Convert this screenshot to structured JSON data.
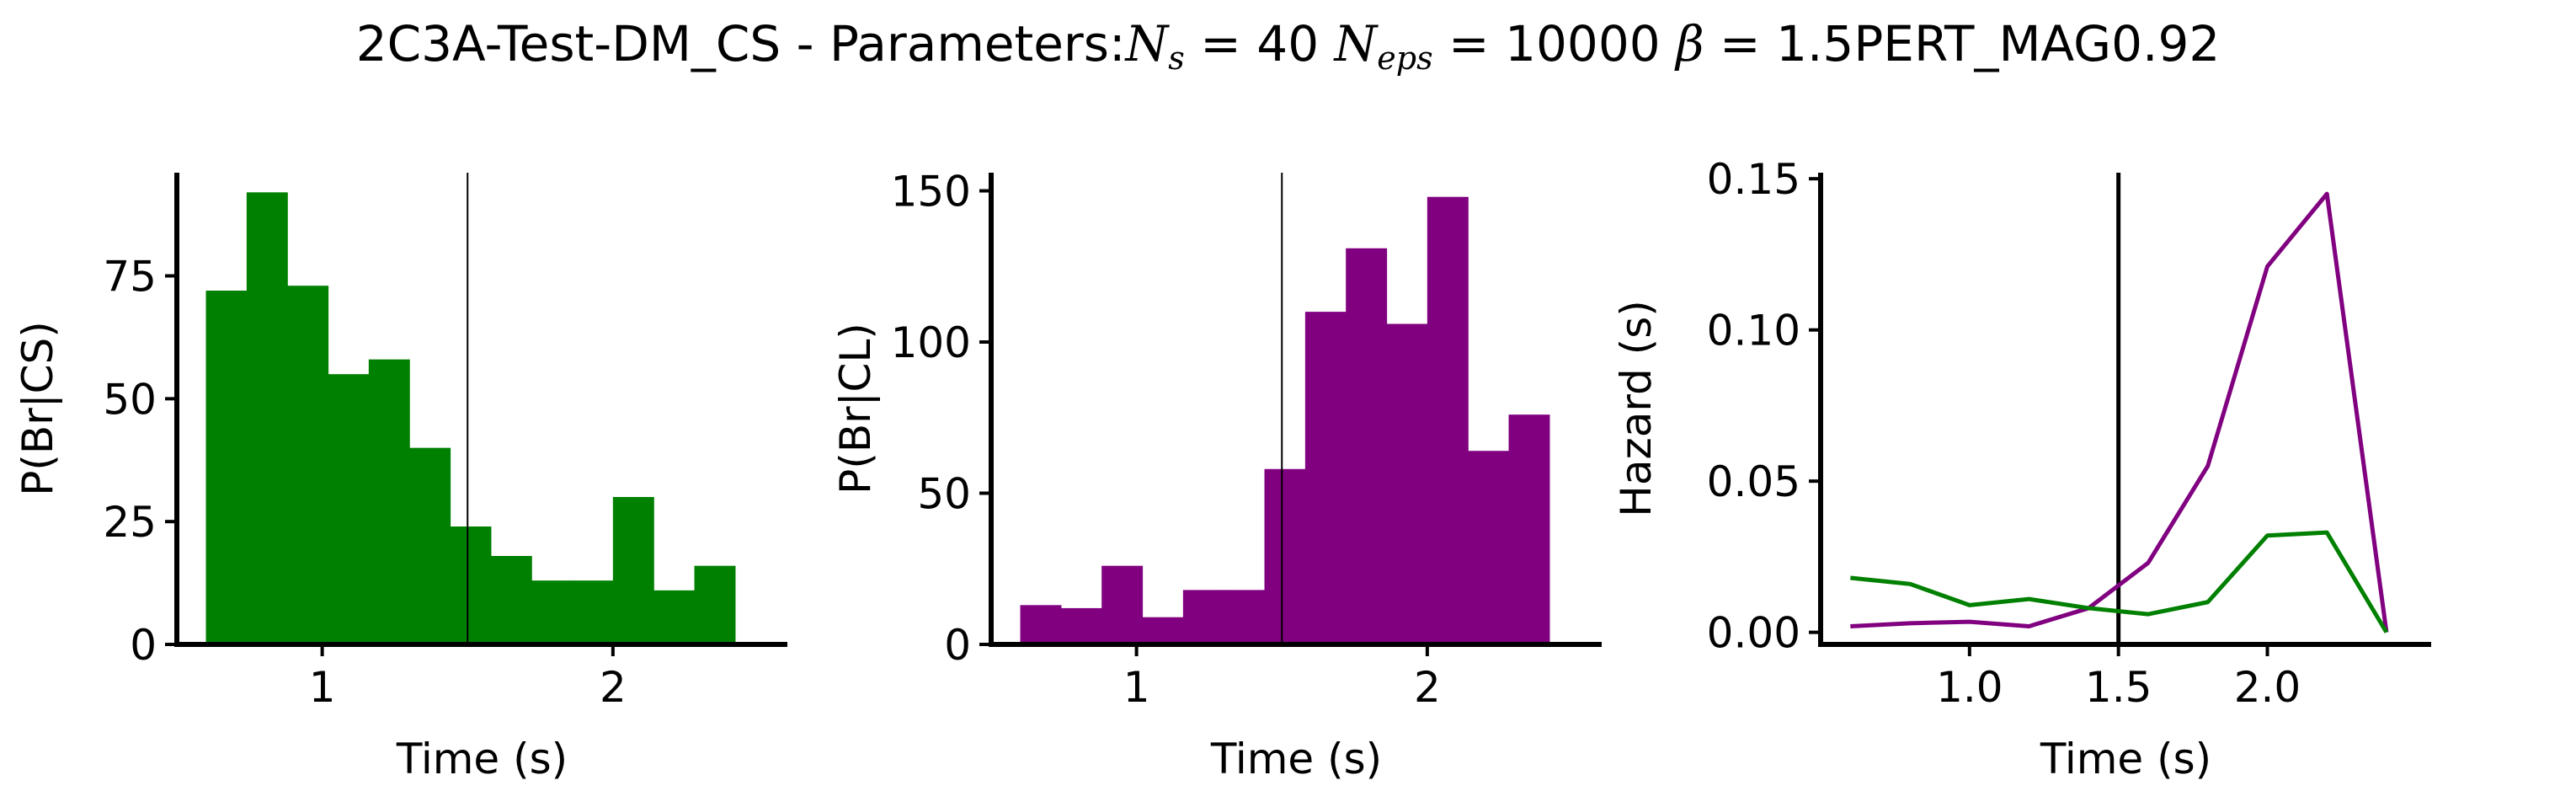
{
  "figure": {
    "title_prefix": "2C3A-Test-DM_CS - Parameters:",
    "params": [
      {
        "sym": "N",
        "sub": "s",
        "value": "40"
      },
      {
        "sym": "N",
        "sub": "eps",
        "value": "10000"
      },
      {
        "sym": "β",
        "sub": "",
        "value": "1.5"
      }
    ],
    "title_suffix": "PERT_MAG0.92"
  },
  "chart_data": [
    {
      "type": "bar",
      "ylabel": "P(Br|CS)",
      "xlabel": "Time (s)",
      "color": "#008000",
      "xlim": [
        0.5,
        2.6
      ],
      "ylim": [
        0,
        96
      ],
      "xticks": [
        1,
        2
      ],
      "xtick_labels": [
        "1",
        "2"
      ],
      "yticks": [
        0,
        25,
        50,
        75
      ],
      "ytick_labels": [
        "0",
        "25",
        "50",
        "75"
      ],
      "bin_edges": [
        0.6,
        0.74,
        0.88,
        1.02,
        1.16,
        1.3,
        1.44,
        1.58,
        1.72,
        1.86,
        2.0,
        2.14,
        2.28,
        2.42
      ],
      "values": [
        72,
        92,
        73,
        55,
        58,
        40,
        24,
        18,
        13,
        13,
        30,
        11,
        16
      ],
      "vline": 1.5
    },
    {
      "type": "bar",
      "ylabel": "P(Br|CL)",
      "xlabel": "Time (s)",
      "color": "#800080",
      "xlim": [
        0.5,
        2.6
      ],
      "ylim": [
        0,
        156
      ],
      "xticks": [
        1,
        2
      ],
      "xtick_labels": [
        "1",
        "2"
      ],
      "yticks": [
        0,
        50,
        100,
        150
      ],
      "ytick_labels": [
        "0",
        "50",
        "100",
        "150"
      ],
      "bin_edges": [
        0.6,
        0.74,
        0.88,
        1.02,
        1.16,
        1.3,
        1.44,
        1.58,
        1.72,
        1.86,
        2.0,
        2.14,
        2.28,
        2.42
      ],
      "values": [
        13,
        12,
        26,
        9,
        18,
        18,
        58,
        110,
        131,
        106,
        148,
        64,
        76
      ],
      "vline": 1.5
    },
    {
      "type": "line",
      "ylabel": "Hazard (s)",
      "xlabel": "Time (s)",
      "xlim": [
        0.5,
        2.55
      ],
      "ylim": [
        -0.004,
        0.152
      ],
      "xticks": [
        1.0,
        1.5,
        2.0
      ],
      "xtick_labels": [
        "1.0",
        "1.5",
        "2.0"
      ],
      "yticks": [
        0.0,
        0.05,
        0.1,
        0.15
      ],
      "ytick_labels": [
        "0.00",
        "0.05",
        "0.10",
        "0.15"
      ],
      "vline": 1.5,
      "series": [
        {
          "color": "#800080",
          "x": [
            0.6,
            0.8,
            1.0,
            1.2,
            1.4,
            1.6,
            1.8,
            2.0,
            2.2,
            2.4
          ],
          "y": [
            0.002,
            0.003,
            0.0035,
            0.002,
            0.008,
            0.023,
            0.055,
            0.121,
            0.145,
            0.0
          ]
        },
        {
          "color": "#008000",
          "x": [
            0.6,
            0.8,
            1.0,
            1.2,
            1.4,
            1.6,
            1.8,
            2.0,
            2.2,
            2.4
          ],
          "y": [
            0.018,
            0.016,
            0.009,
            0.011,
            0.008,
            0.006,
            0.01,
            0.032,
            0.033,
            0.0
          ]
        }
      ]
    }
  ]
}
